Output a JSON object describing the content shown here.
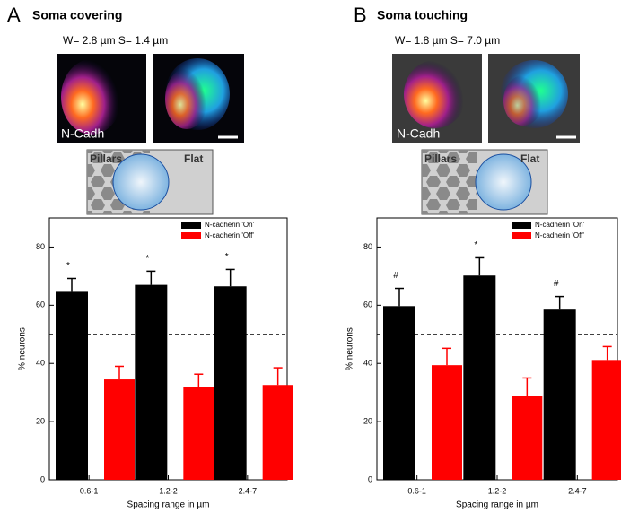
{
  "panels": [
    {
      "letter": "A",
      "title": "Soma covering",
      "caption": "W= 2.8 µm S= 1.4 µm",
      "image_label": "N-Cadh",
      "left_label": "Pillars",
      "right_label": "Flat"
    },
    {
      "letter": "B",
      "title": "Soma touching",
      "caption": "W= 1.8 µm S= 7.0 µm",
      "image_label": "N-Cadh",
      "left_label": "Pillars",
      "right_label": "Flat"
    }
  ],
  "chart_data": [
    {
      "type": "bar",
      "x_label": "Spacing range in µm",
      "y_label": "% neurons",
      "categories": [
        "0.6-1",
        "1.2-2",
        "2.4-7"
      ],
      "series": [
        {
          "name": "N-cadherin 'On'",
          "color": "#000000",
          "values": [
            64.6,
            67,
            66.5
          ],
          "errors": [
            4.6,
            4.7,
            5.8
          ]
        },
        {
          "name": "N-cadherin 'Off'",
          "color": "#ff0000",
          "values": [
            34.5,
            32,
            32.6
          ],
          "errors": [
            4.5,
            4.3,
            5.9
          ]
        }
      ],
      "markers": [
        "*",
        "*",
        "*"
      ],
      "reference": 50,
      "ylim": [
        0,
        90
      ],
      "yticks": [
        0,
        20,
        40,
        60,
        80
      ],
      "legend": "top-right"
    },
    {
      "type": "bar",
      "x_label": "Spacing range in µm",
      "y_label": "% neurons",
      "categories": [
        "0.6-1",
        "1.2-2",
        "2.4-7"
      ],
      "series": [
        {
          "name": "N-cadherin 'On'",
          "color": "#000000",
          "values": [
            59.7,
            70.2,
            58.5
          ],
          "errors": [
            6.1,
            6.1,
            4.5
          ]
        },
        {
          "name": "N-cadherin 'Off'",
          "color": "#ff0000",
          "values": [
            39.4,
            28.9,
            41.2
          ],
          "errors": [
            5.8,
            6.1,
            4.6
          ]
        }
      ],
      "markers": [
        "#",
        "*",
        "#"
      ],
      "reference": 50,
      "ylim": [
        0,
        90
      ],
      "yticks": [
        0,
        20,
        40,
        60,
        80
      ],
      "legend": "top-right"
    }
  ]
}
